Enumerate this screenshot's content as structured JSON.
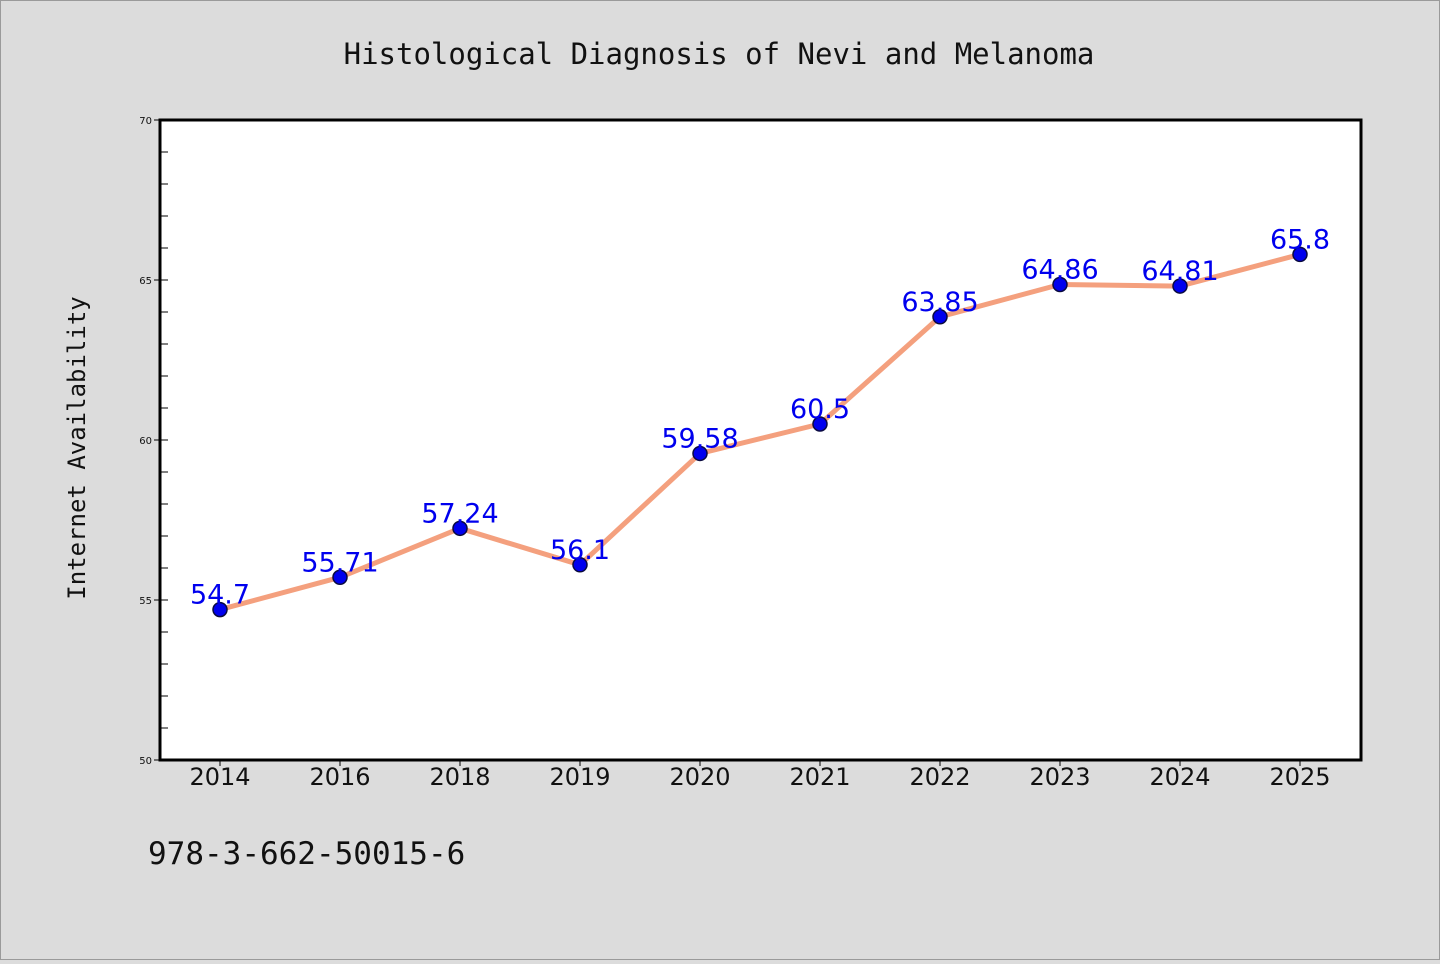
{
  "chart_data": {
    "type": "line",
    "title": "Histological Diagnosis of Nevi and Melanoma",
    "xlabel": "",
    "ylabel": "Internet Availability",
    "categories": [
      "2014",
      "2016",
      "2018",
      "2019",
      "2020",
      "2021",
      "2022",
      "2023",
      "2024",
      "2025"
    ],
    "series": [
      {
        "values": [
          54.7,
          55.71,
          57.24,
          56.1,
          59.58,
          60.5,
          63.85,
          64.86,
          64.81,
          65.8
        ]
      }
    ],
    "data_labels": [
      "54.7",
      "55.71",
      "57.24",
      "56.1",
      "59.58",
      "60.5",
      "63.85",
      "64.86",
      "64.81",
      "65.8"
    ],
    "ylim": [
      50,
      70
    ],
    "yticks": [
      "50",
      "55",
      "60",
      "65",
      "70"
    ],
    "grid": false,
    "legend": "none",
    "colors": {
      "line": "#f4a07e",
      "marker": "#0000ee",
      "marker_edge": "#0a0a40",
      "label": "#0000ee",
      "plot_bg": "#ffffff",
      "figure_bg": "#dcdcdc"
    }
  },
  "footer": {
    "isbn": "978-3-662-50015-6"
  }
}
